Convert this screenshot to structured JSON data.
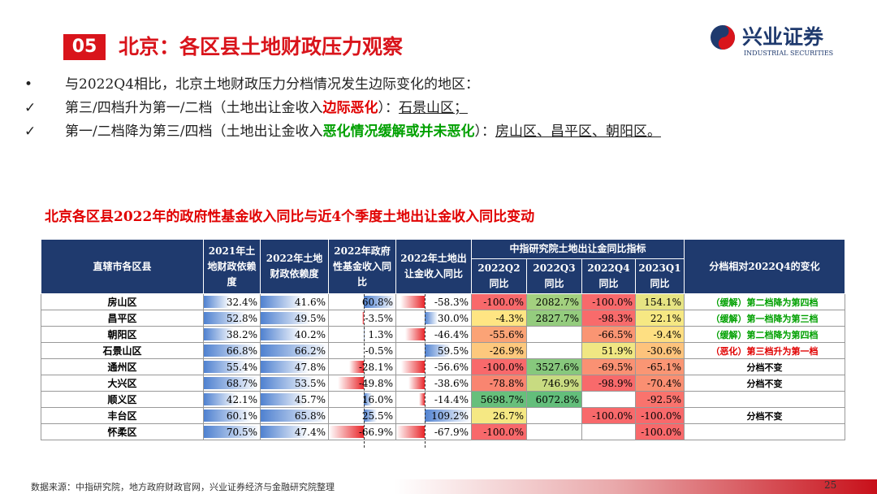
{
  "header": {
    "number": "05",
    "title": "北京：各区县土地财政压力观察",
    "logo_cn": "兴业证券",
    "logo_en": "INDUSTRIAL SECURITIES"
  },
  "bullets": [
    {
      "mark": "•",
      "parts": [
        {
          "text": "与2022Q4相比，北京土地财政压力分档情况发生边际变化的地区："
        }
      ]
    },
    {
      "mark": "✓",
      "parts": [
        {
          "text": "第三/四档升为第一/二档（土地出让金收入"
        },
        {
          "text": "边际恶化",
          "color": "#e00000"
        },
        {
          "text": "）："
        },
        {
          "text": "石景山区；",
          "underline": true
        }
      ]
    },
    {
      "mark": "✓",
      "parts": [
        {
          "text": "第一/二档降为第三/四档（土地出让金收入"
        },
        {
          "text": "恶化情况缓解或并未恶化",
          "color": "#00a000"
        },
        {
          "text": "）："
        },
        {
          "text": "房山区、昌平区、朝阳区。",
          "underline": true
        }
      ]
    }
  ],
  "table": {
    "title": "北京各区县2022年的政府性基金收入同比与近4个季度土地出让金收入同比变动",
    "group_header": "中指研究院土地出让金同比指标",
    "columns": [
      "直辖市各区县",
      "2021年土地财政依赖度",
      "2022年土地财政依赖度",
      "2022年政府性基金收入同比",
      "2022年土地出让金收入同比",
      "2022Q2同比",
      "2022Q3同比",
      "2022Q4同比",
      "2023Q1同比",
      "分档相对2022Q4的变化"
    ],
    "rows": [
      [
        "房山区",
        "32.4%",
        "41.6%",
        "60.8%",
        "-58.3%",
        "-100.0%",
        "2082.7%",
        "-100.0%",
        "154.1%",
        "（缓解）第二档降为第四档"
      ],
      [
        "昌平区",
        "52.8%",
        "49.5%",
        "-3.5%",
        "30.0%",
        "-4.3%",
        "2827.7%",
        "-98.3%",
        "22.1%",
        "（缓解）第一档降为第三档"
      ],
      [
        "朝阳区",
        "38.2%",
        "40.2%",
        "1.3%",
        "-46.4%",
        "-55.6%",
        null,
        "-66.5%",
        "-9.4%",
        "（缓解）第二档降为第四档"
      ],
      [
        "石景山区",
        "66.8%",
        "66.2%",
        "-0.5%",
        "59.5%",
        "-26.9%",
        null,
        "51.9%",
        "-30.6%",
        "（恶化）第三档升为第一档"
      ],
      [
        "通州区",
        "55.4%",
        "47.8%",
        "-28.1%",
        "-56.6%",
        "-100.0%",
        "3527.6%",
        "-69.5%",
        "-65.1%",
        "分档不变"
      ],
      [
        "大兴区",
        "68.7%",
        "53.5%",
        "-49.8%",
        "-38.6%",
        "-78.8%",
        "746.9%",
        "-98.9%",
        "-70.4%",
        "分档不变"
      ],
      [
        "顺义区",
        "42.1%",
        "45.7%",
        "16.0%",
        "-14.4%",
        "5698.7%",
        "6072.8%",
        null,
        "-92.5%",
        null
      ],
      [
        "丰台区",
        "60.1%",
        "65.8%",
        "25.5%",
        "109.2%",
        "26.7%",
        null,
        "-100.0%",
        "-100.0%",
        "分档不变"
      ],
      [
        "怀柔区",
        "70.5%",
        "47.4%",
        "-66.9%",
        "-67.9%",
        "-100.0%",
        null,
        null,
        "-100.0%",
        null
      ]
    ]
  },
  "footer": {
    "source": "数据来源：中指研究院，地方政府财政官网，兴业证券经济与金融研究院整理",
    "page": "25"
  }
}
